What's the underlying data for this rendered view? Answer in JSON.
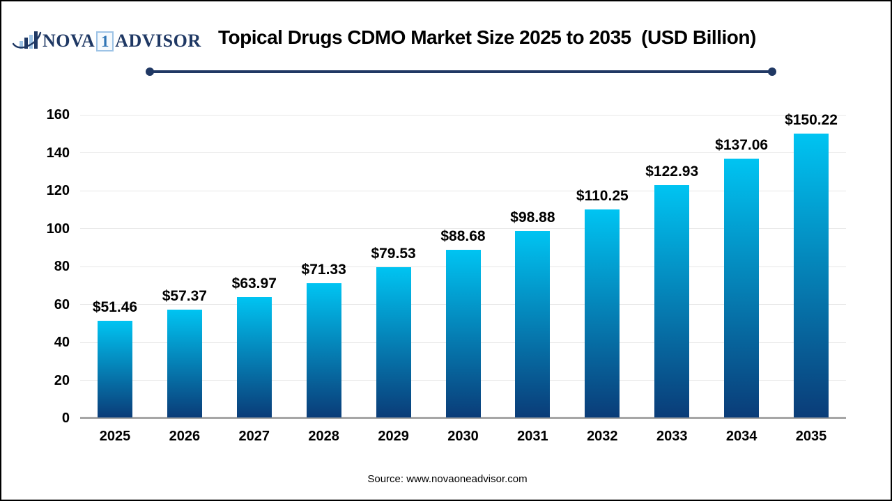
{
  "page": {
    "background": "#ffffff",
    "border_color": "#000000"
  },
  "logo": {
    "icon": "bar-chart-swoosh-icon",
    "name_part1": "NOVA",
    "name_boxed": "1",
    "name_part2": "ADVISOR",
    "navy": "#1f3864",
    "light_blue": "#9dc3e6",
    "one_color": "#2e74b5"
  },
  "header": {
    "title": "Topical Drugs CDMO Market Size 2025 to 2035  (USD Billion)",
    "divider_color": "#203864"
  },
  "chart_data": {
    "type": "bar",
    "title": "Topical Drugs CDMO Market Size 2025 to 2035 (USD Billion)",
    "categories": [
      "2025",
      "2026",
      "2027",
      "2028",
      "2029",
      "2030",
      "2031",
      "2032",
      "2033",
      "2034",
      "2035"
    ],
    "values": [
      51.46,
      57.37,
      63.97,
      71.33,
      79.53,
      88.68,
      98.88,
      110.25,
      122.93,
      137.06,
      150.22
    ],
    "value_labels": [
      "$51.46",
      "$57.37",
      "$63.97",
      "$71.33",
      "$79.53",
      "$88.68",
      "$98.88",
      "$110.25",
      "$122.93",
      "$137.06",
      "$150.22"
    ],
    "unit": "USD Billion",
    "xlabel": "",
    "ylabel": "",
    "ylim": [
      0,
      160
    ],
    "yticks": [
      0,
      20,
      40,
      60,
      80,
      100,
      120,
      140,
      160
    ],
    "grid": true,
    "legend": "none",
    "bar_gradient_top": "#00c4f2",
    "bar_gradient_bottom": "#0a3c78",
    "gridline_color": "#e7e7e7",
    "baseline_color": "#a6a6a6",
    "label_color": "#000000"
  },
  "footer": {
    "source": "Source: www.novaoneadvisor.com"
  }
}
